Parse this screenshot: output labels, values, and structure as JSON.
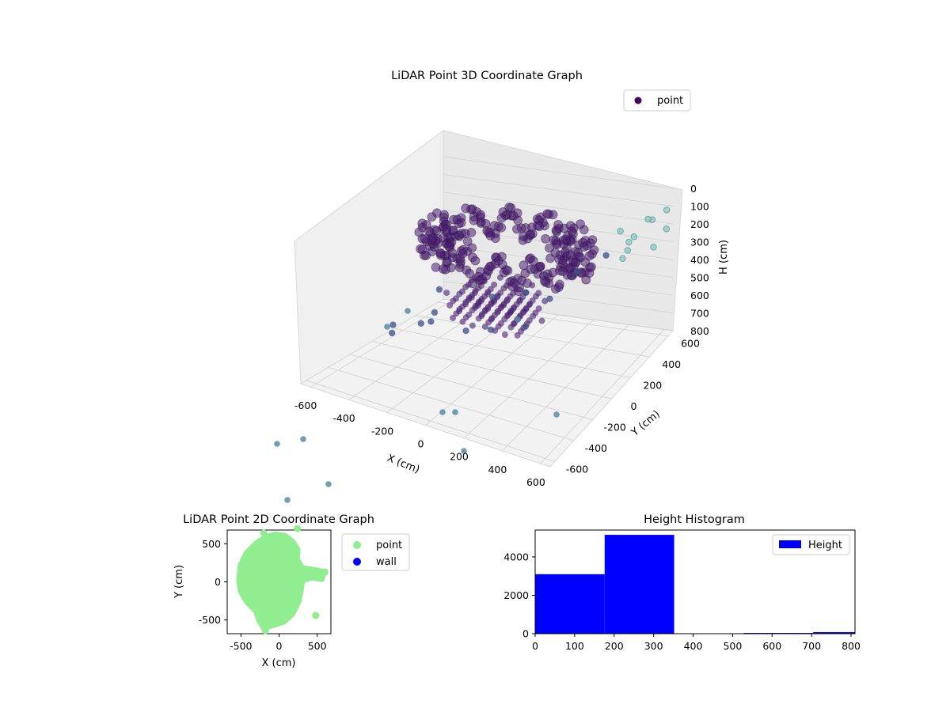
{
  "chart_data": [
    {
      "type": "scatter3d",
      "title": "LiDAR Point 3D Coordinate Graph",
      "xlabel": "X (cm)",
      "ylabel": "Y (cm)",
      "zlabel": "H (cm)",
      "xticks": [
        -600,
        -400,
        -200,
        0,
        200,
        400,
        600
      ],
      "yticks": [
        -600,
        -400,
        -200,
        0,
        200,
        400,
        600
      ],
      "zticks": [
        0,
        100,
        200,
        300,
        400,
        500,
        600,
        700,
        800
      ],
      "xlim": [
        -650,
        650
      ],
      "ylim": [
        -650,
        650
      ],
      "zlim": [
        0,
        800
      ],
      "z_inverted": true,
      "grid": true,
      "legend": {
        "location": "top-right",
        "entries": [
          "point"
        ]
      },
      "colors": {
        "dense": "#481f70",
        "mid": "#3e4c8a",
        "far": "#5d8ba6",
        "teal": "#7fcdbb"
      },
      "series": [
        {
          "name": "point",
          "description_x_y_h": "ring of points around origin at heights ~150-300 cm; lower cluster ~350-550 cm; scattered outliers",
          "points": [
            [
              -560,
              40,
              700
            ],
            [
              -380,
              120,
              620
            ],
            [
              -150,
              -320,
              420
            ],
            [
              -200,
              -150,
              330
            ],
            [
              -90,
              -90,
              560
            ],
            [
              60,
              -120,
              500
            ],
            [
              140,
              80,
              560
            ],
            [
              250,
              120,
              400
            ],
            [
              -350,
              -60,
              600
            ],
            [
              -460,
              -140,
              650
            ],
            [
              -120,
              220,
              520
            ],
            [
              40,
              260,
              480
            ],
            [
              300,
              300,
              330
            ],
            [
              420,
              380,
              260
            ],
            [
              500,
              520,
              220
            ],
            [
              560,
              600,
              160
            ],
            [
              620,
              640,
              120
            ],
            [
              480,
              440,
              300
            ],
            [
              380,
              600,
              250
            ],
            [
              540,
              380,
              210
            ],
            [
              610,
              520,
              260
            ],
            [
              640,
              600,
              200
            ],
            [
              450,
              560,
              280
            ],
            [
              520,
              630,
              180
            ]
          ]
        }
      ]
    },
    {
      "type": "scatter",
      "title": "LiDAR Point 2D Coordinate Graph",
      "xlabel": "X (cm)",
      "ylabel": "Y (cm)",
      "xticks": [
        -500,
        0,
        500
      ],
      "yticks": [
        -500,
        0,
        500
      ],
      "xlim": [
        -680,
        680
      ],
      "ylim": [
        -680,
        680
      ],
      "legend": {
        "location": "outside-right",
        "entries": [
          "point",
          "wall"
        ]
      },
      "series": [
        {
          "name": "point",
          "color": "#90ee90",
          "outline_x_y": [
            [
              -520,
              20
            ],
            [
              -500,
              220
            ],
            [
              -420,
              380
            ],
            [
              -300,
              500
            ],
            [
              -180,
              580
            ],
            [
              -50,
              620
            ],
            [
              80,
              600
            ],
            [
              180,
              520
            ],
            [
              240,
              420
            ],
            [
              230,
              300
            ],
            [
              300,
              180
            ],
            [
              420,
              160
            ],
            [
              580,
              130
            ],
            [
              560,
              40
            ],
            [
              420,
              60
            ],
            [
              300,
              20
            ],
            [
              280,
              -120
            ],
            [
              250,
              -260
            ],
            [
              170,
              -420
            ],
            [
              60,
              -520
            ],
            [
              -60,
              -560
            ],
            [
              -200,
              -600
            ],
            [
              -260,
              -500
            ],
            [
              -300,
              -380
            ],
            [
              -420,
              -260
            ],
            [
              -500,
              -120
            ]
          ],
          "outliers": [
            [
              -200,
              640
            ],
            [
              -180,
              -640
            ],
            [
              -140,
              -580
            ],
            [
              480,
              -440
            ],
            [
              560,
              100
            ],
            [
              600,
              130
            ],
            [
              -100,
              600
            ],
            [
              240,
              700
            ]
          ]
        },
        {
          "name": "wall",
          "color": "#0000ff",
          "points": []
        }
      ]
    },
    {
      "type": "bar",
      "title": "Height Histogram",
      "xlabel": "",
      "ylabel": "",
      "xticks": [
        0,
        100,
        200,
        300,
        400,
        500,
        600,
        700,
        800
      ],
      "yticks": [
        0,
        2000,
        4000
      ],
      "xlim": [
        0,
        810
      ],
      "ylim": [
        0,
        5400
      ],
      "legend": {
        "location": "top-right",
        "entries": [
          "Height"
        ]
      },
      "color": "#0000ff",
      "series": [
        {
          "name": "Height",
          "bins": [
            0,
            176,
            352,
            528,
            704,
            880
          ],
          "counts": [
            3100,
            5150,
            0,
            40,
            80
          ]
        }
      ]
    }
  ]
}
